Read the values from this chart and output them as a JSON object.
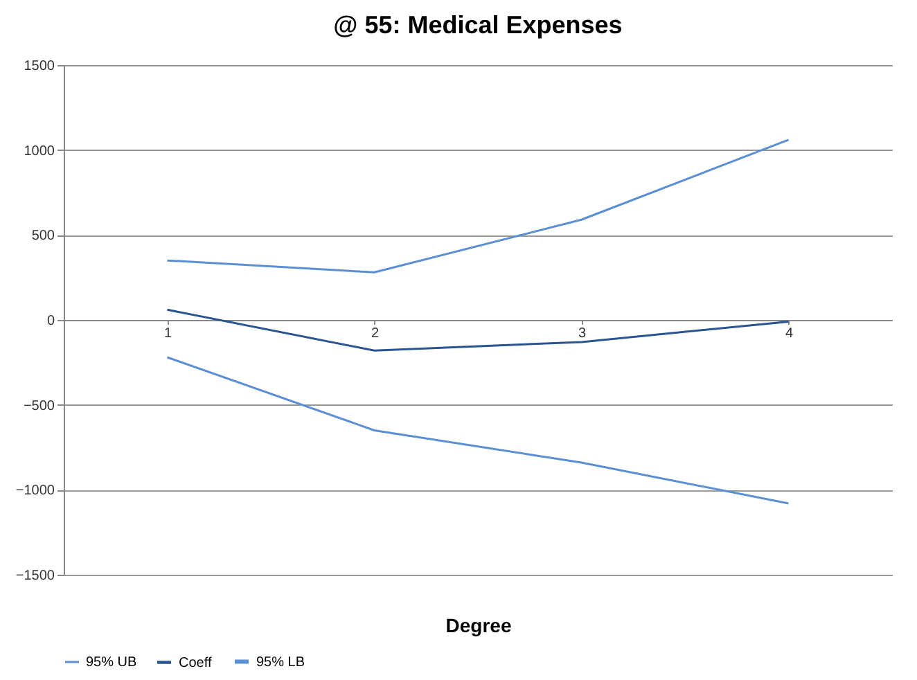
{
  "chart_data": {
    "type": "line",
    "title": "@ 55: Medical Expenses",
    "xlabel": "Degree",
    "categories": [
      "1",
      "2",
      "3",
      "4"
    ],
    "series": [
      {
        "name": "95% UB",
        "color": "#5b8fd4",
        "values": [
          350,
          280,
          590,
          1060
        ]
      },
      {
        "name": "Coeff",
        "color": "#2a5590",
        "values": [
          60,
          -180,
          -130,
          -10
        ]
      },
      {
        "name": "95% LB",
        "color": "#5b8fd4",
        "values": [
          -220,
          -650,
          -840,
          -1080
        ]
      }
    ],
    "ylim": [
      -1500,
      1500
    ],
    "yticks": [
      -1500,
      -1000,
      -500,
      0,
      500,
      1000,
      1500
    ],
    "grid": "y",
    "legend": "bottom",
    "marker": "none",
    "line_style": "solid"
  }
}
